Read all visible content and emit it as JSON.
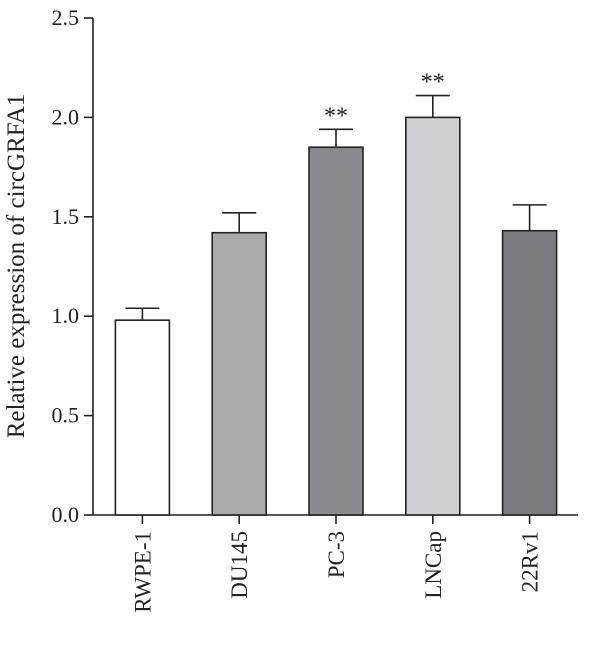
{
  "chart_data": {
    "type": "bar",
    "title": "",
    "xlabel": "",
    "ylabel": "Relative expression of circGRFA1",
    "ylim": [
      0,
      2.5
    ],
    "yticks": [
      "0.0",
      "0.5",
      "1.0",
      "1.5",
      "2.0",
      "2.5"
    ],
    "grid": false,
    "categories": [
      "RWPE-1",
      "DU145",
      "PC-3",
      "LNCap",
      "22Rv1"
    ],
    "values": [
      0.98,
      1.42,
      1.85,
      2.0,
      1.43
    ],
    "error": [
      0.06,
      0.1,
      0.09,
      0.11,
      0.13
    ],
    "significance": [
      "",
      "",
      "**",
      "**",
      ""
    ],
    "colors": [
      "#ffffff",
      "#aaaaad",
      "#8a8a8e",
      "#d0d0d2",
      "#7b7c80"
    ]
  }
}
